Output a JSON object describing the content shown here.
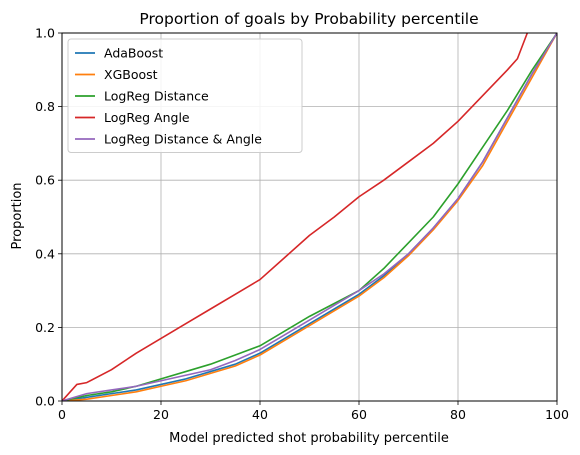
{
  "chart_data": {
    "type": "line",
    "title": "Proportion of goals by Probability percentile",
    "xlabel": "Model predicted shot probability percentile",
    "ylabel": "Proportion",
    "xlim": [
      0,
      100
    ],
    "ylim": [
      0,
      1
    ],
    "x_ticks": [
      "0",
      "20",
      "40",
      "60",
      "80",
      "100"
    ],
    "y_ticks": [
      "0.0",
      "0.2",
      "0.4",
      "0.6",
      "0.8",
      "1.0"
    ],
    "grid": true,
    "legend_position": "top-left",
    "series": [
      {
        "name": "AdaBoost",
        "color": "#1f77b4",
        "x": [
          0,
          5,
          10,
          15,
          20,
          25,
          30,
          35,
          40,
          45,
          50,
          55,
          60,
          65,
          70,
          75,
          80,
          85,
          90,
          95,
          100
        ],
        "y": [
          0.0,
          0.01,
          0.02,
          0.03,
          0.045,
          0.06,
          0.08,
          0.1,
          0.13,
          0.17,
          0.21,
          0.25,
          0.29,
          0.34,
          0.4,
          0.47,
          0.55,
          0.65,
          0.77,
          0.89,
          1.0
        ]
      },
      {
        "name": "XGBoost",
        "color": "#ff7f0e",
        "x": [
          0,
          5,
          10,
          15,
          20,
          25,
          30,
          35,
          40,
          45,
          50,
          55,
          60,
          65,
          70,
          75,
          80,
          85,
          90,
          95,
          100
        ],
        "y": [
          0.0,
          0.005,
          0.015,
          0.025,
          0.04,
          0.055,
          0.075,
          0.095,
          0.125,
          0.165,
          0.205,
          0.245,
          0.285,
          0.335,
          0.395,
          0.465,
          0.545,
          0.64,
          0.76,
          0.88,
          1.0
        ]
      },
      {
        "name": "LogReg Distance",
        "color": "#2ca02c",
        "x": [
          0,
          5,
          10,
          15,
          20,
          25,
          30,
          35,
          40,
          45,
          50,
          55,
          60,
          65,
          70,
          75,
          80,
          85,
          90,
          95,
          100
        ],
        "y": [
          0.0,
          0.015,
          0.025,
          0.04,
          0.06,
          0.08,
          0.1,
          0.125,
          0.15,
          0.19,
          0.23,
          0.265,
          0.3,
          0.36,
          0.43,
          0.5,
          0.59,
          0.69,
          0.79,
          0.9,
          1.0
        ]
      },
      {
        "name": "LogReg Angle",
        "color": "#d62728",
        "x": [
          0,
          3,
          5,
          10,
          15,
          20,
          25,
          30,
          35,
          40,
          45,
          50,
          55,
          60,
          65,
          70,
          75,
          80,
          85,
          90,
          92,
          94
        ],
        "y": [
          0.0,
          0.045,
          0.05,
          0.085,
          0.13,
          0.17,
          0.21,
          0.25,
          0.29,
          0.33,
          0.39,
          0.45,
          0.5,
          0.555,
          0.6,
          0.65,
          0.7,
          0.76,
          0.83,
          0.9,
          0.93,
          1.0
        ]
      },
      {
        "name": "LogReg Distance & Angle",
        "color": "#9467bd",
        "x": [
          0,
          5,
          10,
          15,
          20,
          25,
          30,
          35,
          40,
          45,
          50,
          55,
          60,
          65,
          70,
          75,
          80,
          85,
          90,
          95,
          100
        ],
        "y": [
          0.0,
          0.02,
          0.03,
          0.04,
          0.055,
          0.07,
          0.085,
          0.11,
          0.14,
          0.18,
          0.22,
          0.26,
          0.3,
          0.345,
          0.4,
          0.47,
          0.55,
          0.65,
          0.77,
          0.89,
          1.0
        ]
      }
    ]
  }
}
